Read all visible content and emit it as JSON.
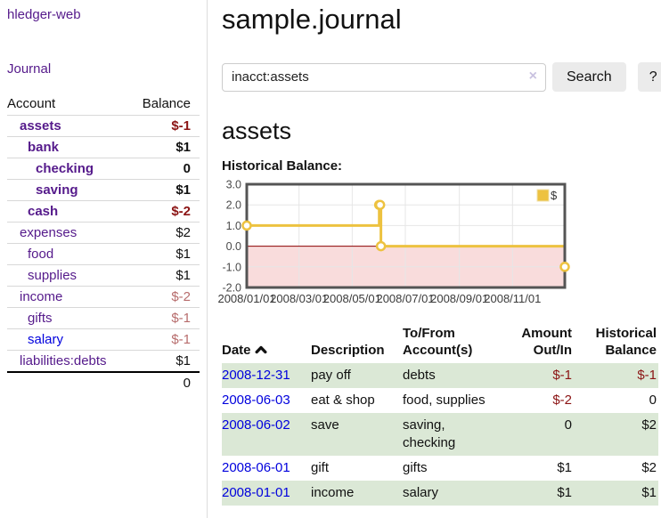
{
  "colors": {
    "link_purple": "#551a8b",
    "link_blue": "#0000dd",
    "negative_strong": "#8b1414",
    "negative_soft": "#b76c6c",
    "row_stripe_green": "#dbe8d6",
    "button_bg": "#ebebeb",
    "chart_series": "#edc240",
    "chart_negative_region": "#f9dcdc",
    "chart_zero_line": "#8b0000",
    "chart_border": "#545454"
  },
  "sidebar": {
    "brand": "hledger-web",
    "nav": {
      "journal": "Journal"
    },
    "accounts_table": {
      "headers": {
        "account": "Account",
        "balance": "Balance"
      },
      "rows": [
        {
          "account": "assets",
          "balance": "$-1",
          "level": 1,
          "in_current_account": true,
          "negative": "strong"
        },
        {
          "account": "bank",
          "balance": "$1",
          "level": 2,
          "in_current_account": true,
          "negative": null
        },
        {
          "account": "checking",
          "balance": "0",
          "level": 3,
          "in_current_account": true,
          "negative": null
        },
        {
          "account": "saving",
          "balance": "$1",
          "level": 3,
          "in_current_account": true,
          "negative": null
        },
        {
          "account": "cash",
          "balance": "$-2",
          "level": 2,
          "in_current_account": true,
          "negative": "strong"
        },
        {
          "account": "expenses",
          "balance": "$2",
          "level": 1,
          "in_current_account": false,
          "negative": null
        },
        {
          "account": "food",
          "balance": "$1",
          "level": 2,
          "in_current_account": false,
          "negative": null
        },
        {
          "account": "supplies",
          "balance": "$1",
          "level": 2,
          "in_current_account": false,
          "negative": null
        },
        {
          "account": "income",
          "balance": "$-2",
          "level": 1,
          "in_current_account": false,
          "negative": "soft"
        },
        {
          "account": "gifts",
          "balance": "$-1",
          "level": 2,
          "in_current_account": false,
          "negative": "soft"
        },
        {
          "account": "salary",
          "balance": "$-1",
          "level": 2,
          "in_current_account": false,
          "negative": "soft"
        },
        {
          "account": "liabilities:debts",
          "balance": "$1",
          "level": 1,
          "in_current_account": false,
          "negative": null
        }
      ],
      "total": "0"
    }
  },
  "main": {
    "title": "sample.journal",
    "search": {
      "value": "inacct:assets",
      "clear_label": "×",
      "button_label": "Search",
      "help_label": "?"
    },
    "account_heading": "assets",
    "chart_title": "Historical Balance:"
  },
  "chart_data": {
    "type": "line",
    "title": "Historical Balance:",
    "steps": true,
    "series": [
      {
        "name": "$",
        "color": "#edc240",
        "points": [
          [
            "2008-01-01",
            1
          ],
          [
            "2008-06-01",
            2
          ],
          [
            "2008-06-02",
            2
          ],
          [
            "2008-06-03",
            0
          ],
          [
            "2008-12-31",
            -1
          ]
        ]
      }
    ],
    "xlim": [
      "2008-01-01",
      "2008-12-31"
    ],
    "ylim": [
      -2.0,
      3.0
    ],
    "yticks": [
      3.0,
      2.0,
      1.0,
      0.0,
      -1.0,
      -2.0
    ],
    "xticks": [
      "2008/01/01",
      "2008/03/01",
      "2008/05/01",
      "2008/07/01",
      "2008/09/01",
      "2008/11/01"
    ],
    "legend_position": "top-right",
    "grid": true,
    "negative_region_color": "#f9dcdc",
    "zero_line_color": "#8b0000"
  },
  "register": {
    "headers": {
      "date": "Date",
      "sort_direction": "ascending",
      "description": "Description",
      "tofrom": "To/From Account(s)",
      "amount": "Amount Out/In",
      "balance": "Historical Balance"
    },
    "rows": [
      {
        "date": "2008-12-31",
        "description": "pay off",
        "accounts": "debts",
        "amount": "$-1",
        "balance": "$-1",
        "amount_negative": true,
        "balance_negative": true
      },
      {
        "date": "2008-06-03",
        "description": "eat & shop",
        "accounts": "food, supplies",
        "amount": "$-2",
        "balance": "0",
        "amount_negative": true,
        "balance_negative": false
      },
      {
        "date": "2008-06-02",
        "description": "save",
        "accounts": "saving, checking",
        "amount": "0",
        "balance": "$2",
        "amount_negative": false,
        "balance_negative": false
      },
      {
        "date": "2008-06-01",
        "description": "gift",
        "accounts": "gifts",
        "amount": "$1",
        "balance": "$2",
        "amount_negative": false,
        "balance_negative": false
      },
      {
        "date": "2008-01-01",
        "description": "income",
        "accounts": "salary",
        "amount": "$1",
        "balance": "$1",
        "amount_negative": false,
        "balance_negative": false
      }
    ]
  }
}
